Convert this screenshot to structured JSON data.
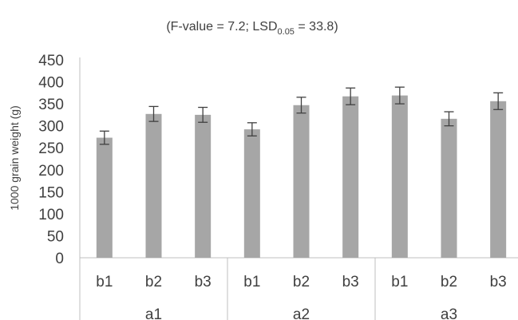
{
  "chart_data": {
    "type": "bar",
    "title_main": "(F-value = 7.2; LSD",
    "title_sub": "0.05",
    "title_tail": " = 33.8)",
    "ylabel": "1000 grain weight (g)",
    "xlabel": "",
    "ylim": [
      0,
      450
    ],
    "yticks": [
      "0",
      "50",
      "100",
      "150",
      "200",
      "250",
      "300",
      "350",
      "400",
      "450"
    ],
    "groups": [
      "a1",
      "a2",
      "a3"
    ],
    "categories": [
      "b1",
      "b2",
      "b3",
      "b1",
      "b2",
      "b3",
      "b1",
      "b2",
      "b3"
    ],
    "values": [
      273,
      327,
      325,
      292,
      347,
      367,
      369,
      316,
      356
    ],
    "errors": [
      15,
      17,
      17,
      15,
      18,
      19,
      19,
      16,
      19
    ],
    "bar_color": "#a6a6a6",
    "error_color": "#404040",
    "grid": false,
    "legend": "none"
  }
}
